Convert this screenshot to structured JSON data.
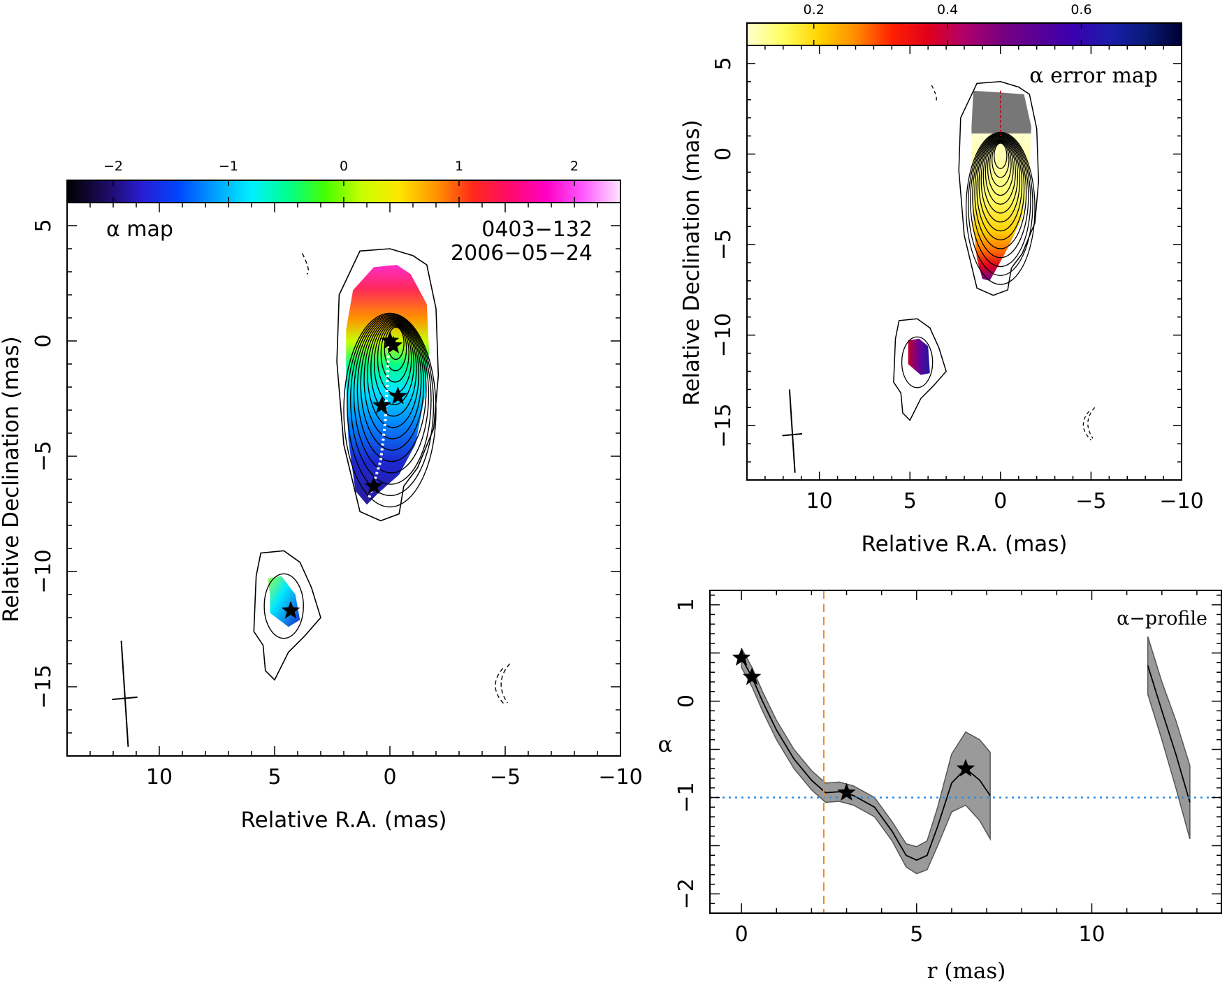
{
  "colors": {
    "alpha_scale": [
      "#000000",
      "#1c0a5a",
      "#2a1ccf",
      "#0044ff",
      "#00a0ff",
      "#00f0ff",
      "#00ff8c",
      "#46ff00",
      "#c8ff00",
      "#ffe600",
      "#ff9400",
      "#ff2a1a",
      "#ff0a6a",
      "#ff00c8",
      "#ff5aff",
      "#ffe6ff"
    ],
    "error_scale": [
      "#ffffd0",
      "#ffff60",
      "#ffd200",
      "#ff8c00",
      "#ff2000",
      "#e0001c",
      "#b0006a",
      "#7a007f",
      "#5a0096",
      "#3a00b0",
      "#1c1caa",
      "#081a78",
      "#000030"
    ],
    "band": "#9a9a9a",
    "threshold": "#2a8ee6",
    "rcore": "#f08a24"
  },
  "chart_data": [
    {
      "type": "heatmap",
      "panel": "alpha-map",
      "label": "α map",
      "source_name": "0403−132",
      "date": "2006−05−24",
      "xlabel": "Relative R.A. (mas)",
      "ylabel": "Relative Declination (mas)",
      "xlim": [
        14.0,
        -10.0
      ],
      "ylim": [
        -18.0,
        6.0
      ],
      "xticks": [
        10,
        5,
        0,
        -5,
        -10
      ],
      "xtick_labels": [
        "10",
        "5",
        "0",
        "−5",
        "−10"
      ],
      "yticks": [
        5,
        0,
        -5,
        -10,
        -15
      ],
      "ytick_labels": [
        "5",
        "0",
        "−5",
        "−10",
        "−15"
      ],
      "colorbar": {
        "min": -2.4,
        "max": 2.4,
        "ticks": [
          -2,
          -1,
          0,
          1,
          2
        ],
        "tick_labels": [
          "−2",
          "−1",
          "0",
          "1",
          "2"
        ]
      },
      "components": [
        {
          "ra": 0.0,
          "dec": 0.0
        },
        {
          "ra": -0.15,
          "dec": -0.2
        },
        {
          "ra": -0.35,
          "dec": -2.4
        },
        {
          "ra": 0.35,
          "dec": -2.8
        },
        {
          "ra": 0.7,
          "dec": -6.3
        },
        {
          "ra": 4.3,
          "dec": -11.7
        }
      ],
      "ridge_line": [
        [
          0.05,
          0.0
        ],
        [
          0.1,
          -1.5
        ],
        [
          0.2,
          -3.5
        ],
        [
          0.4,
          -5.2
        ],
        [
          0.9,
          -6.8
        ]
      ],
      "beam": {
        "ra": 11.5,
        "dec": -15.5,
        "major_mas": 4.6,
        "minor_mas": 1.6
      }
    },
    {
      "type": "heatmap",
      "panel": "alpha-error-map",
      "label": "α  error map",
      "xlabel": "Relative R.A. (mas)",
      "ylabel": "Relative Declination (mas)",
      "xlim": [
        14.0,
        -10.0
      ],
      "ylim": [
        -18.0,
        6.0
      ],
      "xticks": [
        10,
        5,
        0,
        -5,
        -10
      ],
      "xtick_labels": [
        "10",
        "5",
        "0",
        "−5",
        "−10"
      ],
      "yticks": [
        5,
        0,
        -5,
        -10,
        -15
      ],
      "ytick_labels": [
        "5",
        "0",
        "−5",
        "−10",
        "−15"
      ],
      "colorbar": {
        "min": 0.1,
        "max": 0.75,
        "ticks": [
          0.2,
          0.4,
          0.6
        ],
        "tick_labels": [
          "0.2",
          "0.4",
          "0.6"
        ]
      },
      "beam": {
        "ra": 11.5,
        "dec": -15.5,
        "major_mas": 4.6,
        "minor_mas": 1.6
      }
    },
    {
      "type": "line",
      "panel": "alpha-profile",
      "label": "α−profile",
      "xlabel": "r (mas)",
      "ylabel": "α",
      "xlim": [
        -0.9,
        13.7
      ],
      "ylim": [
        -2.2,
        1.15
      ],
      "xticks": [
        0,
        5,
        10
      ],
      "xtick_labels": [
        "0",
        "5",
        "10"
      ],
      "yticks": [
        1,
        0,
        -1,
        -2
      ],
      "ytick_labels": [
        "1",
        "0",
        "−1",
        "−2"
      ],
      "threshold_alpha": -1.0,
      "core_radius": 2.35,
      "series": [
        {
          "x": [
            0.0,
            0.3,
            0.6,
            1.0,
            1.5,
            2.0,
            2.4,
            2.8,
            3.2,
            3.8,
            4.3,
            4.7,
            5.0,
            5.3,
            5.6,
            6.0,
            6.4,
            6.8,
            7.1
          ],
          "y": [
            0.45,
            0.25,
            0.0,
            -0.3,
            -0.6,
            -0.82,
            -0.95,
            -0.94,
            -0.98,
            -1.1,
            -1.35,
            -1.6,
            -1.65,
            -1.6,
            -1.3,
            -0.85,
            -0.7,
            -0.82,
            -0.98
          ],
          "err": [
            0.1,
            0.1,
            0.1,
            0.1,
            0.1,
            0.1,
            0.1,
            0.1,
            0.1,
            0.1,
            0.1,
            0.12,
            0.14,
            0.15,
            0.2,
            0.3,
            0.38,
            0.42,
            0.45
          ]
        },
        {
          "x": [
            11.6,
            12.0,
            12.4,
            12.8
          ],
          "y": [
            0.37,
            -0.1,
            -0.55,
            -1.05
          ],
          "err": [
            0.3,
            0.3,
            0.35,
            0.38
          ]
        }
      ],
      "stars": [
        {
          "x": 0.0,
          "y": 0.45
        },
        {
          "x": 0.3,
          "y": 0.25
        },
        {
          "x": 3.0,
          "y": -0.95
        },
        {
          "x": 6.4,
          "y": -0.7
        }
      ]
    }
  ]
}
